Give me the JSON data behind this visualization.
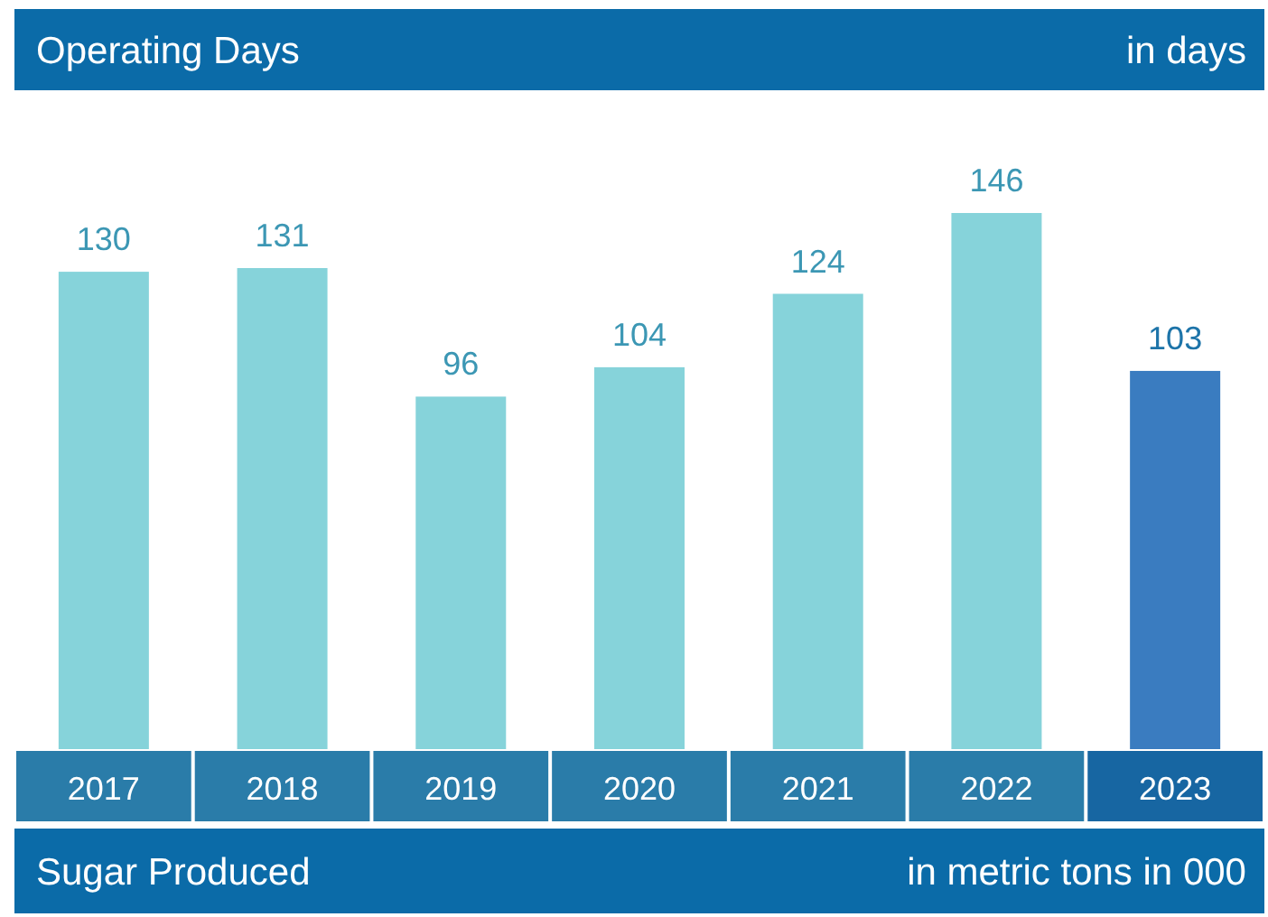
{
  "chart_data": {
    "type": "bar",
    "title": "Operating Days",
    "ylabel": "in days",
    "categories": [
      "2017",
      "2018",
      "2019",
      "2020",
      "2021",
      "2022",
      "2023"
    ],
    "values": [
      130,
      131,
      96,
      104,
      124,
      146,
      103
    ],
    "colors": [
      "#86d3da",
      "#86d3da",
      "#86d3da",
      "#86d3da",
      "#86d3da",
      "#86d3da",
      "#3a7cc0"
    ],
    "data_labels": true,
    "annotations": [
      "Sugar Produced",
      "in metric tons in 000"
    ]
  }
}
